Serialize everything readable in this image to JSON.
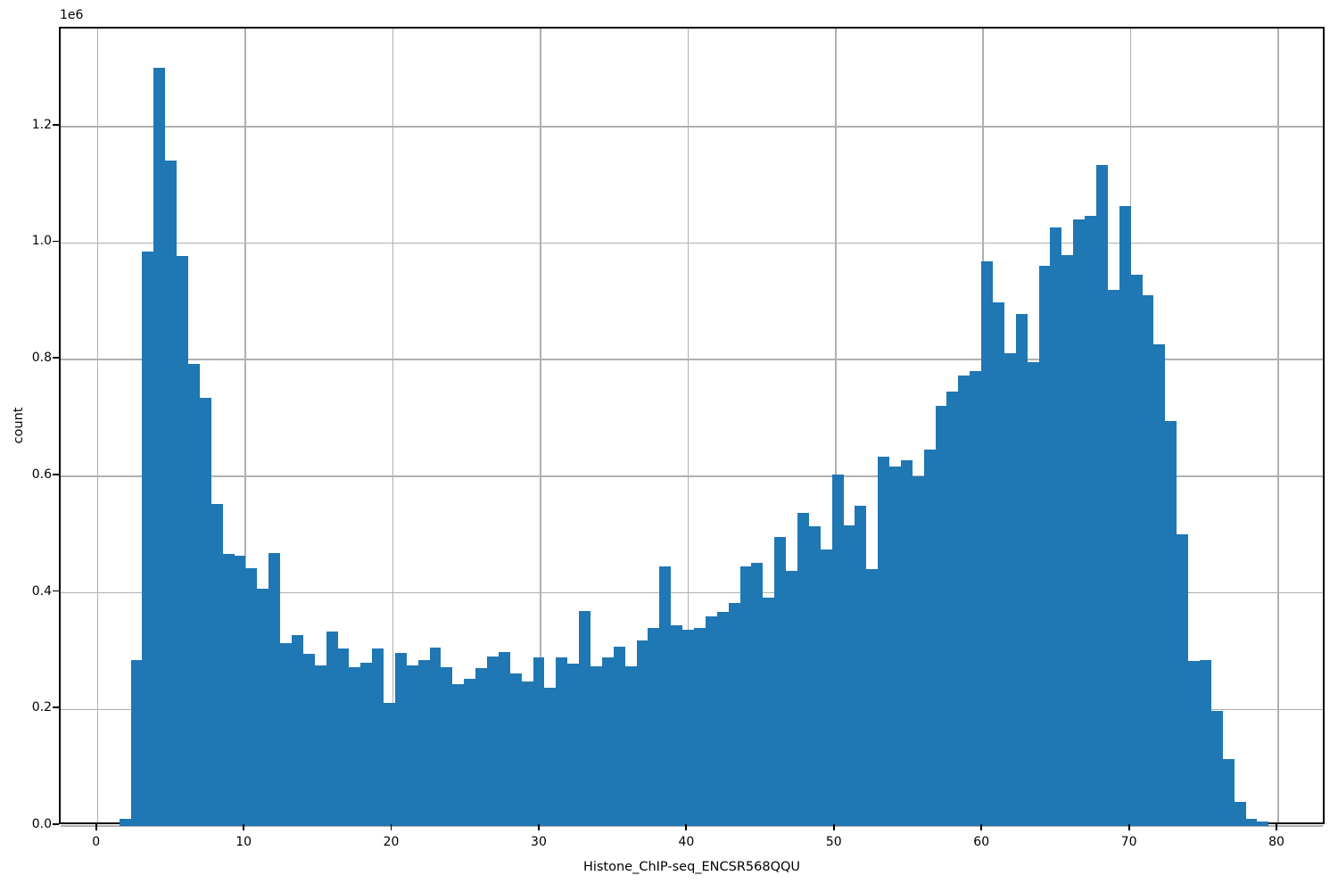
{
  "chart_data": {
    "type": "bar",
    "subtype": "histogram",
    "title": "",
    "xlabel": "Histone_ChIP-seq_ENCSR568QQU",
    "ylabel": "count",
    "y_offset_label": "1e6",
    "bar_color": "#1f77b4",
    "grid_color": "#b0b0b0",
    "spine_color": "#000000",
    "grid": true,
    "legend": false,
    "xlim": [
      -2.52,
      83.26
    ],
    "ylim": [
      0,
      1368000
    ],
    "x_ticks": [
      {
        "value": 0,
        "label": "0"
      },
      {
        "value": 10,
        "label": "10"
      },
      {
        "value": 20,
        "label": "20"
      },
      {
        "value": 30,
        "label": "30"
      },
      {
        "value": 40,
        "label": "40"
      },
      {
        "value": 50,
        "label": "50"
      },
      {
        "value": 60,
        "label": "60"
      },
      {
        "value": 70,
        "label": "70"
      },
      {
        "value": 80,
        "label": "80"
      }
    ],
    "y_ticks": [
      {
        "value": 0,
        "label": "0.0"
      },
      {
        "value": 200000,
        "label": "0.2"
      },
      {
        "value": 400000,
        "label": "0.4"
      },
      {
        "value": 600000,
        "label": "0.6"
      },
      {
        "value": 800000,
        "label": "0.8"
      },
      {
        "value": 1000000,
        "label": "1.0"
      },
      {
        "value": 1200000,
        "label": "1.2"
      }
    ],
    "bin_start": 1.45,
    "bin_width": 0.779,
    "counts": [
      13000,
      285000,
      985000,
      1301000,
      1142000,
      978000,
      793000,
      735000,
      553000,
      466000,
      463000,
      442000,
      407000,
      468000,
      313000,
      327000,
      296000,
      275000,
      334000,
      304000,
      272000,
      280000,
      305000,
      211000,
      297000,
      276000,
      285000,
      306000,
      272000,
      243000,
      252000,
      271000,
      291000,
      298000,
      261000,
      248000,
      289000,
      237000,
      289000,
      279000,
      369000,
      274000,
      289000,
      308000,
      274000,
      318000,
      340000,
      446000,
      345000,
      336000,
      339000,
      360000,
      368000,
      382000,
      446000,
      452000,
      392000,
      496000,
      437000,
      537000,
      514000,
      474000,
      603000,
      516000,
      550000,
      441000,
      633000,
      616000,
      628000,
      600000,
      646000,
      720000,
      745000,
      772000,
      780000,
      968000,
      898000,
      811000,
      878000,
      795000,
      961000,
      1027000,
      980000,
      1041000,
      1046000,
      1134000,
      920000,
      1064000,
      945000,
      911000,
      827000,
      695000,
      500000,
      283000,
      285000,
      197000,
      115000,
      42000,
      13000,
      7000
    ]
  }
}
